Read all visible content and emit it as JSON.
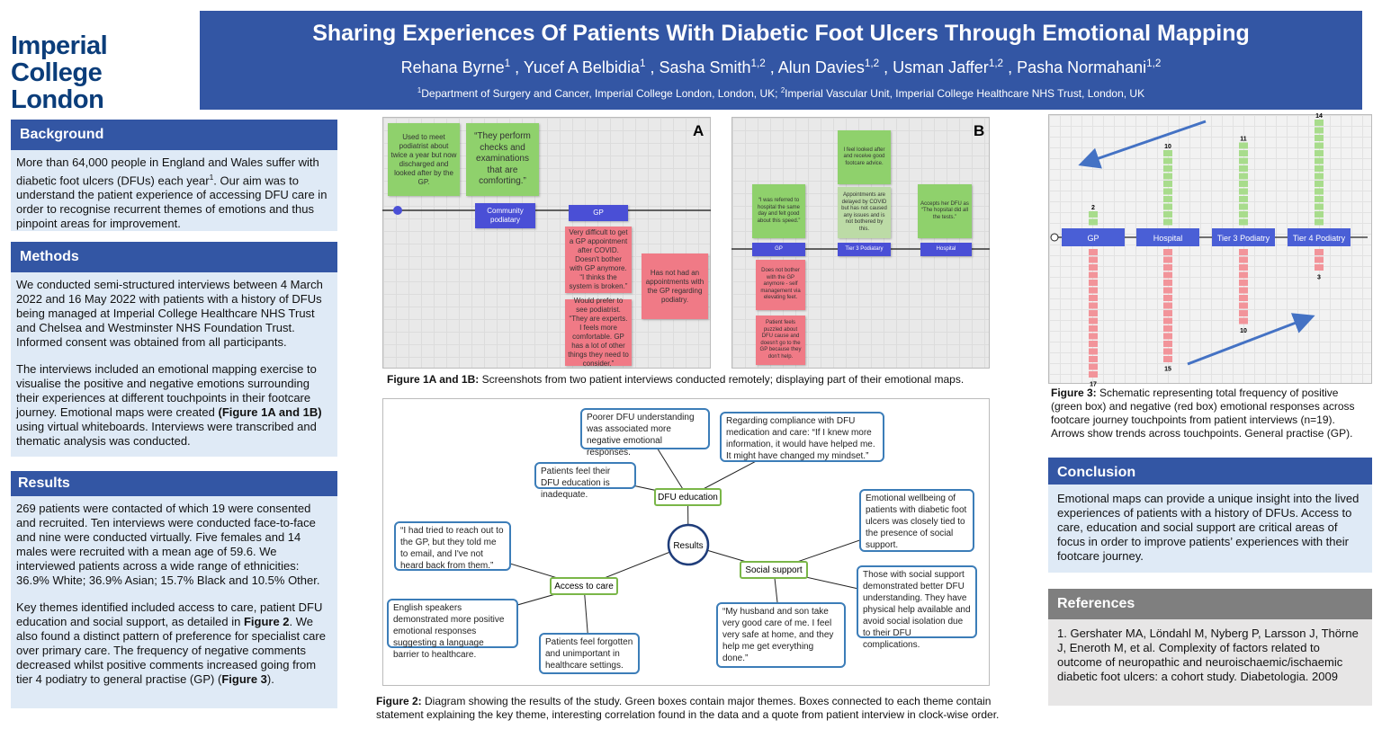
{
  "logo": [
    "Imperial College",
    "London"
  ],
  "header": {
    "title": "Sharing Experiences Of Patients With Diabetic Foot Ulcers Through Emotional Mapping",
    "authors": [
      {
        "name": "Rehana Byrne",
        "affil": "1"
      },
      {
        "name": " , Yucef A Belbidia",
        "affil": "1"
      },
      {
        "name": " ,  Sasha Smith",
        "affil": "1,2"
      },
      {
        "name": " , Alun Davies",
        "affil": "1,2"
      },
      {
        "name": " , Usman Jaffer",
        "affil": "1,2"
      },
      {
        "name": " , Pasha Normahani",
        "affil": "1,2"
      }
    ],
    "affiliations": [
      {
        "text": "1",
        "sup": true
      },
      {
        "text": "Department of Surgery and Cancer, Imperial College London, London, UK; "
      },
      {
        "text": "2",
        "sup": true
      },
      {
        "text": "Imperial Vascular Unit, Imperial College Healthcare NHS Trust, London, UK"
      }
    ]
  },
  "sections": [
    {
      "heading": "Background",
      "paragraphs": [
        [
          {
            "text": "More than 64,000 people in England and Wales suffer with diabetic foot ulcers (DFUs) each year"
          },
          {
            "text": "1",
            "sup": true
          },
          {
            "text": ".  Our aim was to understand the patient experience of accessing DFU care in order to recognise recurrent themes of emotions and thus pinpoint areas for improvement."
          }
        ]
      ]
    },
    {
      "heading": "Methods",
      "paragraphs": [
        [
          {
            "text": "We conducted semi-structured interviews between 4 March 2022 and 16 May 2022 with patients with a history of DFUs being managed at Imperial College Healthcare NHS Trust and Chelsea and Westminster NHS Foundation Trust. Informed consent was obtained from all participants."
          }
        ],
        [
          {
            "text": "The interviews included an emotional mapping exercise to visualise the positive and negative emotions surrounding their experiences at different touchpoints in their footcare journey. Emotional maps were created "
          },
          {
            "text": "(Figure 1A and 1B)",
            "bold": true
          },
          {
            "text": " using virtual whiteboards. Interviews were transcribed and thematic analysis was conducted."
          }
        ]
      ]
    },
    {
      "heading": "Results",
      "paragraphs": [
        [
          {
            "text": "269 patients were contacted of which 19 were consented and recruited. Ten interviews were conducted face-to-face and nine were conducted virtually. Five females and 14 males were recruited with a mean age of 59.6. We interviewed patients across a wide range of ethnicities: 36.9% White; 36.9% Asian; 15.7% Black and 10.5% Other."
          }
        ],
        [
          {
            "text": "Key themes identified included access to care, patient DFU education and social support, as detailed in "
          },
          {
            "text": "Figure 2",
            "bold": true
          },
          {
            "text": ". We also found a distinct pattern of preference for specialist care over primary care. The frequency of negative comments decreased whilst positive comments increased going from tier 4 podiatry to general practise (GP) ("
          },
          {
            "text": "Figure 3",
            "bold": true
          },
          {
            "text": ")."
          }
        ]
      ]
    },
    {
      "heading": "Conclusion",
      "paragraphs": [
        [
          {
            "text": "Emotional maps can provide a unique insight into the lived experiences of patients with a history of DFUs. Access to care, education and social support are critical areas of focus in order to improve patients’ experiences with their footcare journey."
          }
        ]
      ]
    },
    {
      "heading": "References",
      "paragraphs": [
        [
          {
            "text": "1. Gershater MA, Löndahl M, Nyberg P, Larsson J, Thörne J, Eneroth M, et al. Complexity of factors related to outcome of neuropathic and neuroischaemic/ischaemic diabetic foot ulcers: a cohort study. Diabetologia. 2009"
          }
        ]
      ]
    }
  ],
  "figure1": {
    "panels": [
      {
        "label": "A",
        "notes": [
          {
            "kind": "positive",
            "text": "Used to meet podiatrist about twice a year but now discharged and looked after by the GP."
          },
          {
            "kind": "positive",
            "text": "“They perform checks and examinations that are comforting.”"
          },
          {
            "kind": "touchpoint",
            "text": "Community podiatary"
          },
          {
            "kind": "touchpoint",
            "text": "GP"
          },
          {
            "kind": "negative",
            "text": "Very difficult to get a GP appointment after COVID. Doesn't bother with GP anymore. “I thinks the system is broken.”"
          },
          {
            "kind": "negative",
            "text": "Would prefer to see podiatrist. “They are experts. I feels more comfortable. GP has a lot of other things they need to consider.”"
          },
          {
            "kind": "negative",
            "text": "Has not had an appointments with the GP regarding podiatry."
          }
        ]
      },
      {
        "label": "B",
        "notes": [
          {
            "kind": "positive",
            "text": "“I was referred to hospital the same day and felt good about this speed.”"
          },
          {
            "kind": "positive",
            "text": "I feel looked after and receive good footcare advice."
          },
          {
            "kind": "neutral",
            "text": "Appointments are delayed by COVID but has not caused any issues and is not bothered by this."
          },
          {
            "kind": "positive",
            "text": "Accepts her DFU as “The hopsital did all the tests.”"
          },
          {
            "kind": "touchpoint",
            "text": "GP"
          },
          {
            "kind": "touchpoint",
            "text": "Tier 3 Podiatary"
          },
          {
            "kind": "touchpoint",
            "text": "Hospital"
          },
          {
            "kind": "negative",
            "text": "Does not bother with the GP anymore - self management via elevating feet."
          },
          {
            "kind": "negative",
            "text": "Patient feels puzzled about DFU cause and doesn't go to the GP because they don't help."
          }
        ]
      }
    ],
    "caption": [
      {
        "text": "Figure 1A and 1B:",
        "bold": true
      },
      {
        "text": " Screenshots from two patient interviews conducted remotely; displaying part of their emotional maps."
      }
    ]
  },
  "figure2": {
    "center": "Results",
    "themes": [
      {
        "label": "DFU education",
        "statements": [
          "Patients feel their DFU education is inadequate.",
          "Poorer DFU understanding was associated more negative emotional responses.",
          "Regarding compliance with DFU medication and care: “If I knew more information, it would have helped me. It might have changed my mindset.”"
        ]
      },
      {
        "label": "Access to care",
        "statements": [
          "“I had tried to reach out to the GP, but they told me to email, and I've not heard back from them.”",
          "English speakers demonstrated more positive emotional responses suggesting a language barrier to healthcare.",
          "Patients feel forgotten and unimportant in healthcare settings."
        ]
      },
      {
        "label": "Social support",
        "statements": [
          "Emotional wellbeing of patients with diabetic foot ulcers was closely tied to the presence of social support.",
          "Those with social support demonstrated better DFU understanding. They have physical help available and avoid social isolation due to their DFU complications.",
          "“My husband and son take very good care of me. I feel very safe at home, and they help me get everything done.”"
        ]
      }
    ],
    "caption": [
      {
        "text": "Figure 2:",
        "bold": true
      },
      {
        "text": " Diagram showing the results of the study. Green boxes contain major themes. Boxes connected to each theme contain statement explaining the key theme, interesting correlation found in the data and a quote from patient interview in clock-wise order."
      }
    ]
  },
  "figure3": {
    "categories": [
      "GP",
      "Hospital",
      "Tier 3 Podiatry",
      "Tier 4 Podiatry"
    ],
    "positive": [
      2,
      10,
      11,
      14
    ],
    "negative": [
      17,
      15,
      10,
      3
    ],
    "positive_color": "#a8dc8c",
    "negative_color": "#f2949a",
    "caption": [
      {
        "text": "Figure 3:",
        "bold": true
      },
      {
        "text": " Schematic representing total frequency of positive (green box) and negative (red box) emotional responses across footcare journey touchpoints from patient interviews (n=19). Arrows show trends across touchpoints. General practise (GP)."
      }
    ]
  }
}
